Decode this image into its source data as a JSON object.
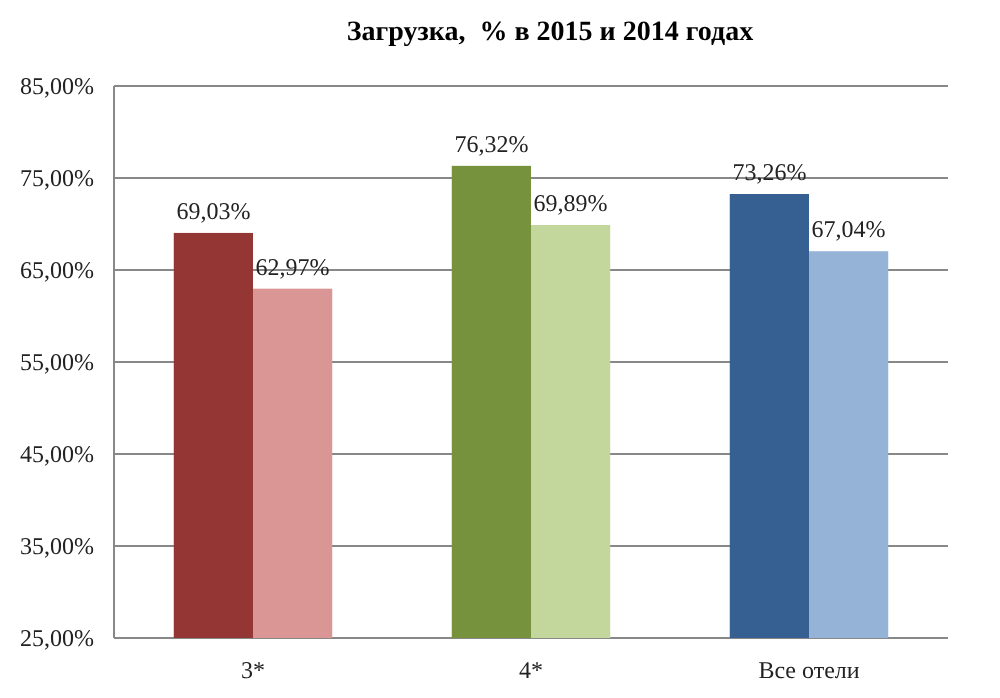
{
  "chart_data": {
    "type": "bar",
    "title": "Загрузка,  % в 2015 и 2014 годах",
    "categories": [
      "3*",
      "4*",
      "Все отели"
    ],
    "series": [
      {
        "colors": [
          "#943634",
          "#76923c",
          "#366092"
        ],
        "values": [
          69.03,
          76.32,
          73.26
        ],
        "value_labels": [
          "69,03%",
          "76,32%",
          "73,26%"
        ]
      },
      {
        "colors": [
          "#d99694",
          "#c3d69b",
          "#95b3d7"
        ],
        "values": [
          62.97,
          69.89,
          67.04
        ],
        "value_labels": [
          "62,97%",
          "69,89%",
          "67,04%"
        ]
      }
    ],
    "ylim": [
      25,
      85
    ],
    "yticks": [
      {
        "value": 25,
        "label": "25,00%"
      },
      {
        "value": 35,
        "label": "35,00%"
      },
      {
        "value": 45,
        "label": "45,00%"
      },
      {
        "value": 55,
        "label": "55,00%"
      },
      {
        "value": 65,
        "label": "65,00%"
      },
      {
        "value": 75,
        "label": "75,00%"
      },
      {
        "value": 85,
        "label": "85,00%"
      }
    ],
    "grid": "y"
  }
}
